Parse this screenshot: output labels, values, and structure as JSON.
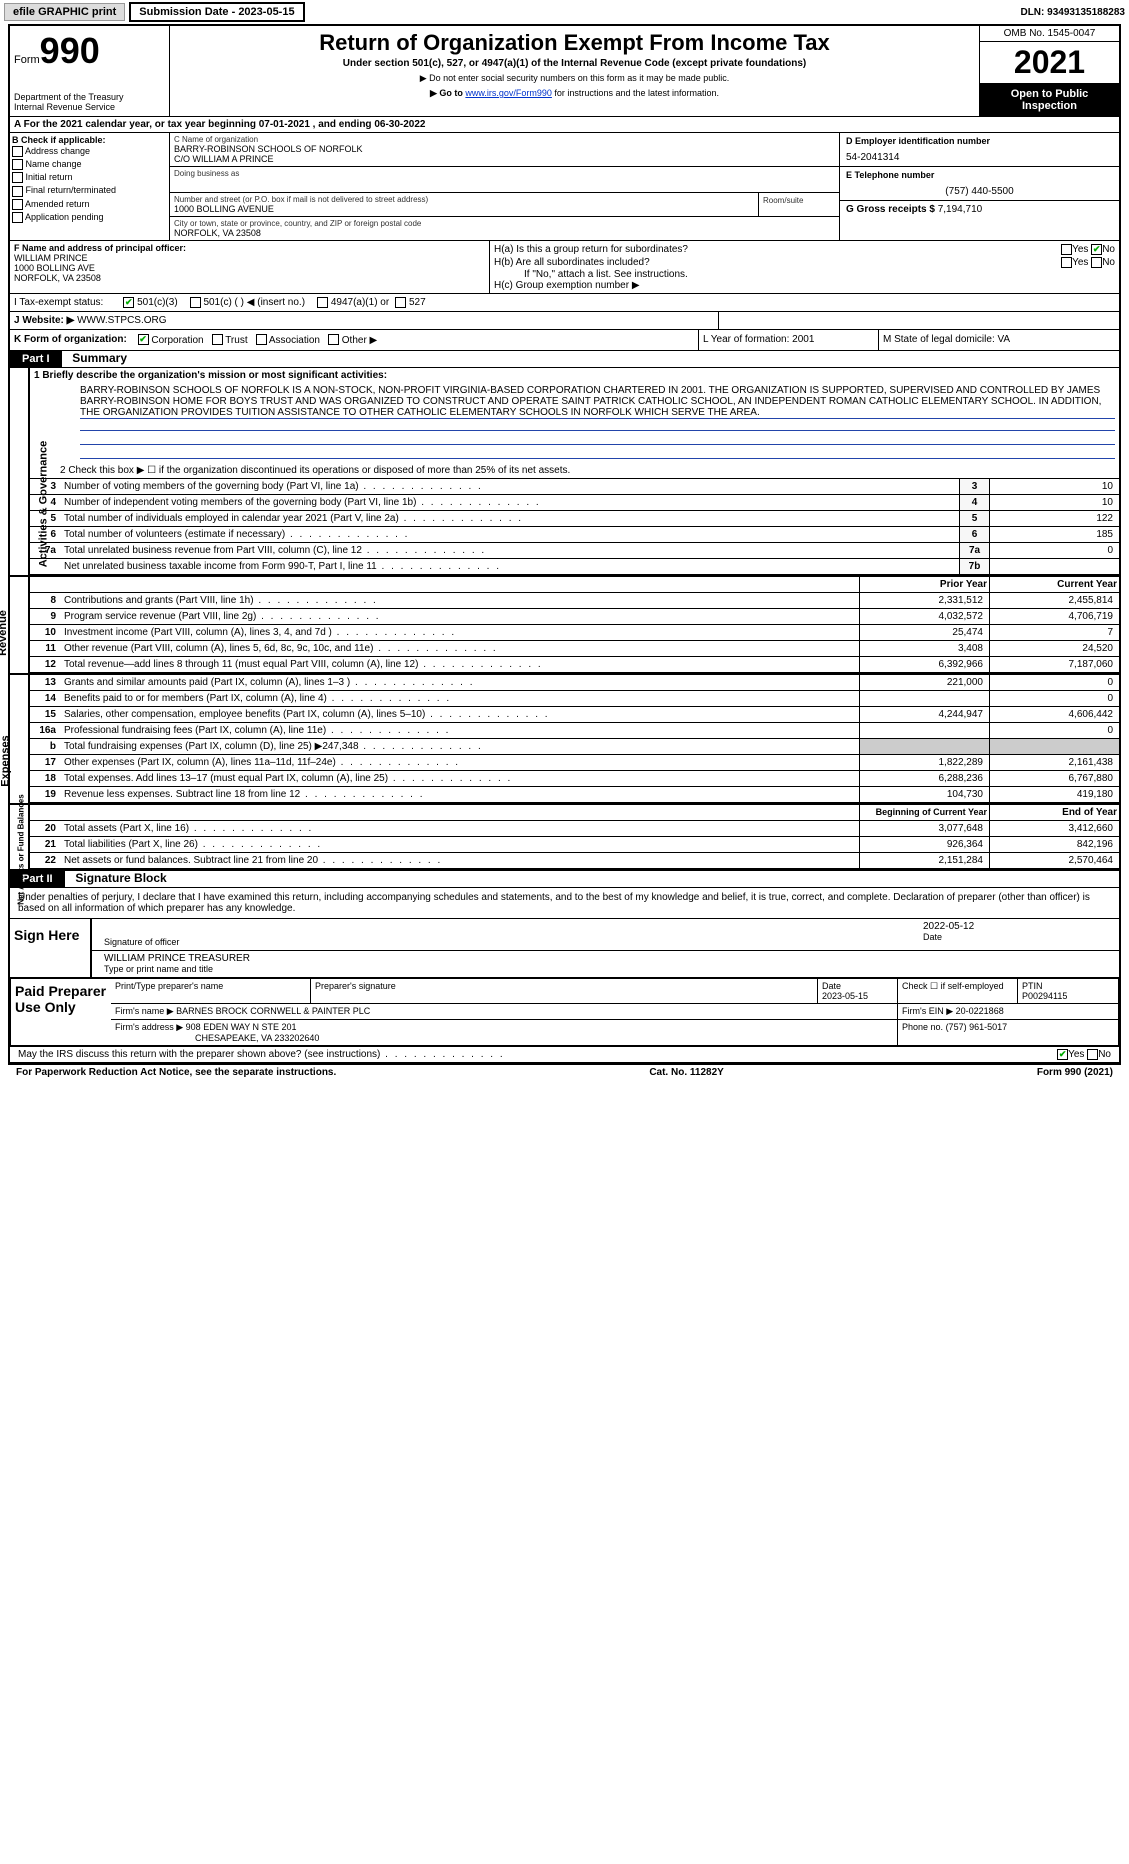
{
  "topbar": {
    "efile": "efile GRAPHIC print",
    "submission": "Submission Date - 2023-05-15",
    "dln": "DLN: 93493135188283"
  },
  "header": {
    "form_word": "Form",
    "form_num": "990",
    "dept": "Department of the Treasury",
    "irs": "Internal Revenue Service",
    "title": "Return of Organization Exempt From Income Tax",
    "sub1": "Under section 501(c), 527, or 4947(a)(1) of the Internal Revenue Code (except private foundations)",
    "sub2": "▶ Do not enter social security numbers on this form as it may be made public.",
    "sub3_pre": "▶ Go to ",
    "sub3_link": "www.irs.gov/Form990",
    "sub3_post": " for instructions and the latest information.",
    "omb": "OMB No. 1545-0047",
    "year": "2021",
    "inspect": "Open to Public Inspection"
  },
  "row_a": "A For the 2021 calendar year, or tax year beginning 07-01-2021    , and ending 06-30-2022",
  "col_b": {
    "label": "B Check if applicable:",
    "items": [
      "Address change",
      "Name change",
      "Initial return",
      "Final return/terminated",
      "Amended return",
      "Application pending"
    ]
  },
  "col_c": {
    "name_lbl": "C Name of organization",
    "name1": "BARRY-ROBINSON SCHOOLS OF NORFOLK",
    "name2": "C/O WILLIAM A PRINCE",
    "dba_lbl": "Doing business as",
    "addr_lbl": "Number and street (or P.O. box if mail is not delivered to street address)",
    "room_lbl": "Room/suite",
    "addr": "1000 BOLLING AVENUE",
    "city_lbl": "City or town, state or province, country, and ZIP or foreign postal code",
    "city": "NORFOLK, VA  23508"
  },
  "col_d": {
    "d_lbl": "D Employer identification number",
    "d_val": "54-2041314",
    "e_lbl": "E Telephone number",
    "e_val": "(757) 440-5500",
    "g_lbl": "G Gross receipts $",
    "g_val": "7,194,710"
  },
  "col_f": {
    "lbl": "F  Name and address of principal officer:",
    "l1": "WILLIAM PRINCE",
    "l2": "1000 BOLLING AVE",
    "l3": "NORFOLK, VA  23508"
  },
  "col_h": {
    "ha": "H(a)  Is this a group return for subordinates?",
    "hb": "H(b)  Are all subordinates included?",
    "hnote": "If \"No,\" attach a list. See instructions.",
    "hc": "H(c)  Group exemption number ▶"
  },
  "row_i": {
    "lbl": "I   Tax-exempt status:",
    "o1": "501(c)(3)",
    "o2": "501(c) (  ) ◀ (insert no.)",
    "o3": "4947(a)(1) or",
    "o4": "527"
  },
  "row_j": {
    "lbl": "J   Website: ▶",
    "val": "WWW.STPCS.ORG"
  },
  "row_k": {
    "k_lbl": "K Form of organization:",
    "k_opts": [
      "Corporation",
      "Trust",
      "Association",
      "Other ▶"
    ],
    "l": "L Year of formation: 2001",
    "m": "M State of legal domicile: VA"
  },
  "part1": {
    "hdr": "Part I",
    "title": "Summary",
    "l1": "1  Briefly describe the organization's mission or most significant activities:",
    "mission": "BARRY-ROBINSON SCHOOLS OF NORFOLK IS A NON-STOCK, NON-PROFIT VIRGINIA-BASED CORPORATION CHARTERED IN 2001. THE ORGANIZATION IS SUPPORTED, SUPERVISED AND CONTROLLED BY JAMES BARRY-ROBINSON HOME FOR BOYS TRUST AND WAS ORGANIZED TO CONSTRUCT AND OPERATE SAINT PATRICK CATHOLIC SCHOOL, AN INDEPENDENT ROMAN CATHOLIC ELEMENTARY SCHOOL. IN ADDITION, THE ORGANIZATION PROVIDES TUITION ASSISTANCE TO OTHER CATHOLIC ELEMENTARY SCHOOLS IN NORFOLK WHICH SERVE THE AREA.",
    "l2": "2   Check this box ▶ ☐  if the organization discontinued its operations or disposed of more than 25% of its net assets.",
    "gov_rows": [
      {
        "n": "3",
        "t": "Number of voting members of the governing body (Part VI, line 1a)",
        "b": "3",
        "v": "10"
      },
      {
        "n": "4",
        "t": "Number of independent voting members of the governing body (Part VI, line 1b)",
        "b": "4",
        "v": "10"
      },
      {
        "n": "5",
        "t": "Total number of individuals employed in calendar year 2021 (Part V, line 2a)",
        "b": "5",
        "v": "122"
      },
      {
        "n": "6",
        "t": "Total number of volunteers (estimate if necessary)",
        "b": "6",
        "v": "185"
      },
      {
        "n": "7a",
        "t": "Total unrelated business revenue from Part VIII, column (C), line 12",
        "b": "7a",
        "v": "0"
      },
      {
        "n": "",
        "t": "Net unrelated business taxable income from Form 990-T, Part I, line 11",
        "b": "7b",
        "v": ""
      }
    ],
    "prior_hdr": "Prior Year",
    "curr_hdr": "Current Year",
    "rev_rows": [
      {
        "n": "8",
        "t": "Contributions and grants (Part VIII, line 1h)",
        "p": "2,331,512",
        "c": "2,455,814"
      },
      {
        "n": "9",
        "t": "Program service revenue (Part VIII, line 2g)",
        "p": "4,032,572",
        "c": "4,706,719"
      },
      {
        "n": "10",
        "t": "Investment income (Part VIII, column (A), lines 3, 4, and 7d )",
        "p": "25,474",
        "c": "7"
      },
      {
        "n": "11",
        "t": "Other revenue (Part VIII, column (A), lines 5, 6d, 8c, 9c, 10c, and 11e)",
        "p": "3,408",
        "c": "24,520"
      },
      {
        "n": "12",
        "t": "Total revenue—add lines 8 through 11 (must equal Part VIII, column (A), line 12)",
        "p": "6,392,966",
        "c": "7,187,060"
      }
    ],
    "exp_rows": [
      {
        "n": "13",
        "t": "Grants and similar amounts paid (Part IX, column (A), lines 1–3 )",
        "p": "221,000",
        "c": "0"
      },
      {
        "n": "14",
        "t": "Benefits paid to or for members (Part IX, column (A), line 4)",
        "p": "",
        "c": "0"
      },
      {
        "n": "15",
        "t": "Salaries, other compensation, employee benefits (Part IX, column (A), lines 5–10)",
        "p": "4,244,947",
        "c": "4,606,442"
      },
      {
        "n": "16a",
        "t": "Professional fundraising fees (Part IX, column (A), line 11e)",
        "p": "",
        "c": "0"
      },
      {
        "n": "b",
        "t": "Total fundraising expenses (Part IX, column (D), line 25) ▶247,348",
        "p": "GRAY",
        "c": "GRAY"
      },
      {
        "n": "17",
        "t": "Other expenses (Part IX, column (A), lines 11a–11d, 11f–24e)",
        "p": "1,822,289",
        "c": "2,161,438"
      },
      {
        "n": "18",
        "t": "Total expenses. Add lines 13–17 (must equal Part IX, column (A), line 25)",
        "p": "6,288,236",
        "c": "6,767,880"
      },
      {
        "n": "19",
        "t": "Revenue less expenses. Subtract line 18 from line 12",
        "p": "104,730",
        "c": "419,180"
      }
    ],
    "na_hdr1": "Beginning of Current Year",
    "na_hdr2": "End of Year",
    "na_rows": [
      {
        "n": "20",
        "t": "Total assets (Part X, line 16)",
        "p": "3,077,648",
        "c": "3,412,660"
      },
      {
        "n": "21",
        "t": "Total liabilities (Part X, line 26)",
        "p": "926,364",
        "c": "842,196"
      },
      {
        "n": "22",
        "t": "Net assets or fund balances. Subtract line 21 from line 20",
        "p": "2,151,284",
        "c": "2,570,464"
      }
    ],
    "side_gov": "Activities & Governance",
    "side_rev": "Revenue",
    "side_exp": "Expenses",
    "side_na": "Net Assets or Fund Balances"
  },
  "part2": {
    "hdr": "Part II",
    "title": "Signature Block",
    "decl": "Under penalties of perjury, I declare that I have examined this return, including accompanying schedules and statements, and to the best of my knowledge and belief, it is true, correct, and complete. Declaration of preparer (other than officer) is based on all information of which preparer has any knowledge.",
    "sign_here": "Sign Here",
    "sig_lbl": "Signature of officer",
    "date_lbl": "Date",
    "date_val": "2022-05-12",
    "name_lbl": "Type or print name and title",
    "name_val": "WILLIAM PRINCE  TREASURER",
    "paid": "Paid Preparer Use Only",
    "p_name_lbl": "Print/Type preparer's name",
    "p_sig_lbl": "Preparer's signature",
    "p_date_lbl": "Date",
    "p_date": "2023-05-15",
    "p_check": "Check ☐ if self-employed",
    "ptin_lbl": "PTIN",
    "ptin": "P00294115",
    "firm_name_lbl": "Firm's name   ▶",
    "firm_name": "BARNES BROCK CORNWELL & PAINTER PLC",
    "firm_ein_lbl": "Firm's EIN ▶",
    "firm_ein": "20-0221868",
    "firm_addr_lbl": "Firm's address ▶",
    "firm_addr1": "908 EDEN WAY N STE 201",
    "firm_addr2": "CHESAPEAKE, VA  233202640",
    "phone_lbl": "Phone no.",
    "phone": "(757) 961-5017",
    "discuss": "May the IRS discuss this return with the preparer shown above? (see instructions)"
  },
  "footer": {
    "pra": "For Paperwork Reduction Act Notice, see the separate instructions.",
    "cat": "Cat. No. 11282Y",
    "form": "Form 990 (2021)"
  }
}
